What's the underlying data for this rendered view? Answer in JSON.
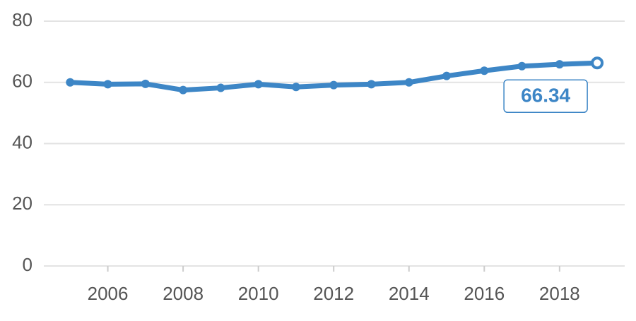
{
  "chart_data": {
    "type": "line",
    "x": [
      2005,
      2006,
      2007,
      2008,
      2009,
      2010,
      2011,
      2012,
      2013,
      2014,
      2015,
      2016,
      2017,
      2018,
      2019
    ],
    "series": [
      {
        "color": "#3d86c6",
        "values": [
          60.0,
          59.4,
          59.5,
          57.5,
          58.2,
          59.4,
          58.5,
          59.1,
          59.4,
          60.0,
          62.1,
          63.8,
          65.3,
          65.9,
          66.34
        ]
      }
    ],
    "xlim": [
      2004.3,
      2019.73
    ],
    "xticks": [
      2006,
      2008,
      2010,
      2012,
      2014,
      2016,
      2018
    ],
    "ylim": [
      0,
      80
    ],
    "yticks": [
      0,
      20,
      40,
      60,
      80
    ],
    "grid": true
  }
}
